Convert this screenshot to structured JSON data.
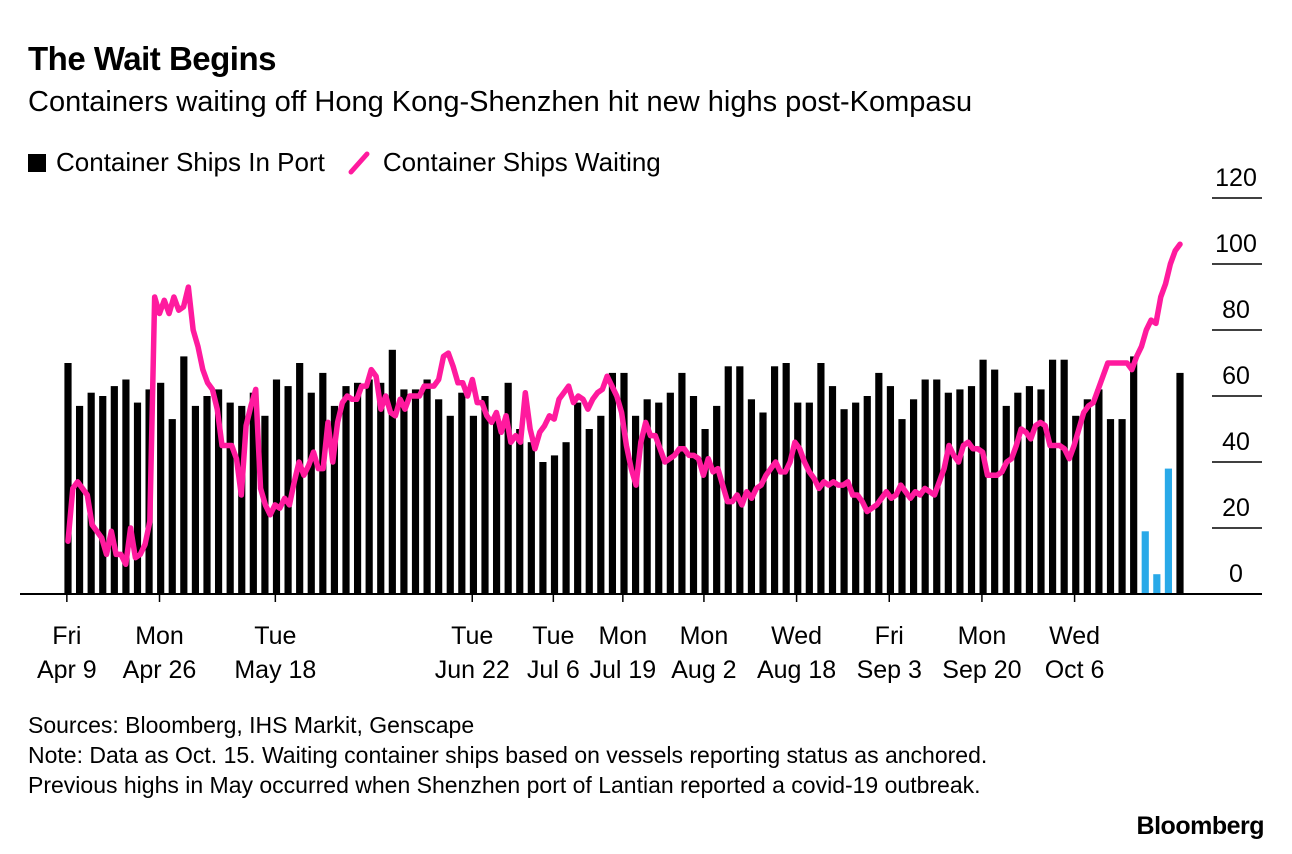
{
  "title": "The Wait Begins",
  "subtitle": "Containers waiting off Hong Kong-Shenzhen hit new highs post-Kompasu",
  "legend": {
    "bars_label": "Container Ships In Port",
    "line_label": "Container Ships Waiting"
  },
  "colors": {
    "bars": "#000000",
    "line": "#ff1a9e",
    "highlight_bars": "#29a9e8",
    "axis": "#000000"
  },
  "footer": {
    "sources": "Sources: Bloomberg, IHS Markit, Genscape",
    "note": "Note: Data as Oct. 15. Waiting container ships based on vessels reporting status as anchored. Previous highs in May occurred when Shenzhen port of Lantian reported a covid-19 outbreak."
  },
  "brand": "Bloomberg",
  "chart_data": {
    "type": "bar",
    "title": "The Wait Begins",
    "ylim": [
      0,
      120
    ],
    "yticks": [
      0,
      20,
      40,
      60,
      80,
      100,
      120
    ],
    "grid": true,
    "x_ticks": [
      {
        "index": 0,
        "day": "Fri",
        "date": "Apr 9"
      },
      {
        "index": 8,
        "day": "Mon",
        "date": "Apr 26"
      },
      {
        "index": 18,
        "day": "Tue",
        "date": "May 18"
      },
      {
        "index": 35,
        "day": "Tue",
        "date": "Jun 22"
      },
      {
        "index": 42,
        "day": "Tue",
        "date": "Jul 6"
      },
      {
        "index": 48,
        "day": "Mon",
        "date": "Jul 19"
      },
      {
        "index": 55,
        "day": "Mon",
        "date": "Aug 2"
      },
      {
        "index": 63,
        "day": "Wed",
        "date": "Aug 18"
      },
      {
        "index": 71,
        "day": "Fri",
        "date": "Sep 3"
      },
      {
        "index": 79,
        "day": "Mon",
        "date": "Sep 20"
      },
      {
        "index": 87,
        "day": "Wed",
        "date": "Oct 6"
      }
    ],
    "series": [
      {
        "name": "Container Ships In Port",
        "kind": "bar",
        "values": [
          70,
          57,
          61,
          60,
          63,
          65,
          58,
          62,
          64,
          53,
          72,
          57,
          60,
          62,
          58,
          57,
          61,
          54,
          65,
          63,
          70,
          61,
          67,
          57,
          63,
          64,
          65,
          64,
          74,
          62,
          62,
          65,
          59,
          54,
          61,
          54,
          60,
          54,
          64,
          50,
          46,
          40,
          42,
          46,
          58,
          50,
          54,
          67,
          67,
          54,
          59,
          58,
          61,
          67,
          60,
          50,
          57,
          69,
          69,
          59,
          55,
          69,
          70,
          58,
          58,
          70,
          63,
          56,
          58,
          60,
          67,
          63,
          53,
          59,
          65,
          65,
          61,
          62,
          63,
          71,
          68,
          57,
          61,
          63,
          62,
          71,
          71,
          54,
          59,
          62,
          53,
          53,
          72,
          19,
          6,
          38,
          67
        ],
        "highlight_indices": [
          93,
          94,
          95
        ]
      },
      {
        "name": "Container Ships Waiting",
        "kind": "line",
        "values": [
          16,
          32,
          34,
          32,
          30,
          21,
          19,
          17,
          12,
          19,
          12,
          12,
          9,
          20,
          11,
          12,
          15,
          22,
          90,
          85,
          89,
          85,
          90,
          86,
          87,
          93,
          80,
          75,
          68,
          64,
          62,
          56,
          45,
          45,
          45,
          41,
          30,
          51,
          57,
          62,
          32,
          27,
          24,
          27,
          26,
          29,
          27,
          34,
          40,
          36,
          39,
          43,
          38,
          38,
          52,
          40,
          52,
          58,
          60,
          59,
          59,
          63,
          63,
          68,
          66,
          56,
          60,
          55,
          54,
          59,
          56,
          60,
          60,
          60,
          63,
          63,
          63,
          65,
          72,
          73,
          69,
          64,
          64,
          60,
          65,
          58,
          58,
          54,
          52,
          55,
          49,
          54,
          46,
          48,
          46,
          61,
          50,
          44,
          49,
          51,
          54,
          53,
          59,
          61,
          63,
          58,
          60,
          59,
          56,
          59,
          61,
          62,
          66,
          63,
          60,
          55,
          45,
          38,
          33,
          46,
          52,
          48,
          48,
          44,
          40,
          41,
          42,
          44,
          44,
          42,
          42,
          41,
          36,
          41,
          37,
          38,
          33,
          28,
          28,
          30,
          27,
          31,
          29,
          32,
          33,
          36,
          38,
          40,
          37,
          37,
          40,
          46,
          44,
          40,
          37,
          35,
          32,
          34,
          33,
          34,
          33,
          33,
          34,
          30,
          30,
          28,
          25,
          26,
          27,
          29,
          31,
          29,
          30,
          33,
          31,
          29,
          31,
          30,
          32,
          31,
          30,
          34,
          38,
          45,
          42,
          40,
          45,
          46,
          44,
          44,
          43,
          36,
          36,
          36,
          37,
          40,
          41,
          45,
          50,
          49,
          47,
          51,
          52,
          51,
          45,
          45,
          45,
          44,
          41,
          45,
          50,
          55,
          57,
          58,
          62,
          66,
          70,
          70,
          70,
          70,
          70,
          68,
          72,
          75,
          80,
          83,
          82,
          90,
          94,
          100,
          104,
          106
        ]
      }
    ]
  }
}
